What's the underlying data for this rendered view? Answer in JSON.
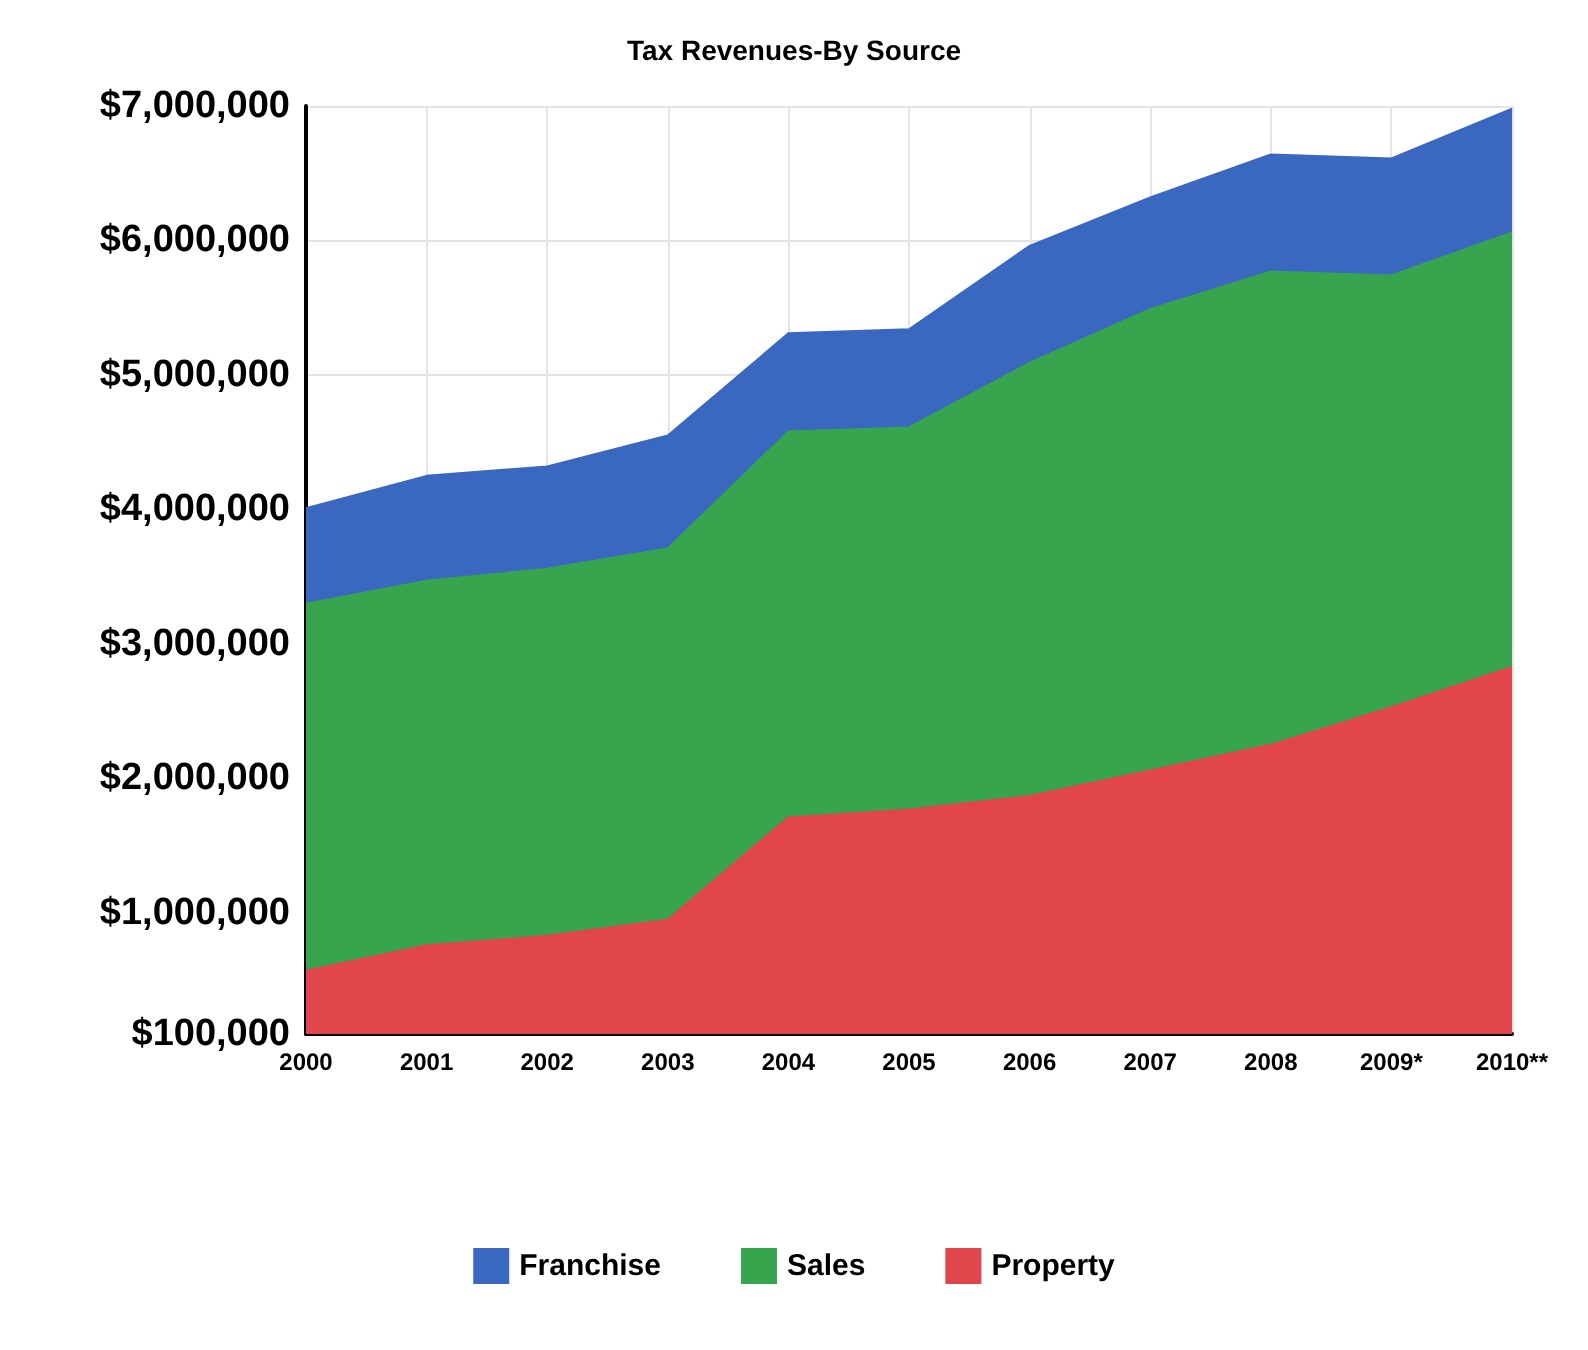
{
  "chart_data": {
    "type": "area",
    "title": "Tax Revenues-By Source",
    "stacked": true,
    "categories": [
      "2000",
      "2001",
      "2002",
      "2003",
      "2004",
      "2005",
      "2006",
      "2007",
      "2008",
      "2009*",
      "2010**"
    ],
    "series": [
      {
        "name": "Property",
        "color": "#e0464c",
        "values": [
          570000,
          760000,
          830000,
          950000,
          1710000,
          1770000,
          1870000,
          2060000,
          2250000,
          2530000,
          2830000
        ]
      },
      {
        "name": "Sales",
        "color": "#37a54e",
        "values": [
          2730000,
          2710000,
          2730000,
          2760000,
          2870000,
          2840000,
          3220000,
          3430000,
          3520000,
          3210000,
          3230000
        ]
      },
      {
        "name": "Franchise",
        "color": "#3a67c0",
        "values": [
          710000,
          780000,
          760000,
          840000,
          730000,
          730000,
          870000,
          830000,
          870000,
          870000,
          920000
        ]
      }
    ],
    "ylim": [
      100000,
      7000000
    ],
    "yticks": [
      {
        "value": 100000,
        "label": "$100,000"
      },
      {
        "value": 1000000,
        "label": "$1,000,000"
      },
      {
        "value": 2000000,
        "label": "$2,000,000"
      },
      {
        "value": 3000000,
        "label": "$3,000,000"
      },
      {
        "value": 4000000,
        "label": "$4,000,000"
      },
      {
        "value": 5000000,
        "label": "$5,000,000"
      },
      {
        "value": 6000000,
        "label": "$6,000,000"
      },
      {
        "value": 7000000,
        "label": "$7,000,000"
      }
    ],
    "grid": true,
    "legend": "bottom"
  }
}
